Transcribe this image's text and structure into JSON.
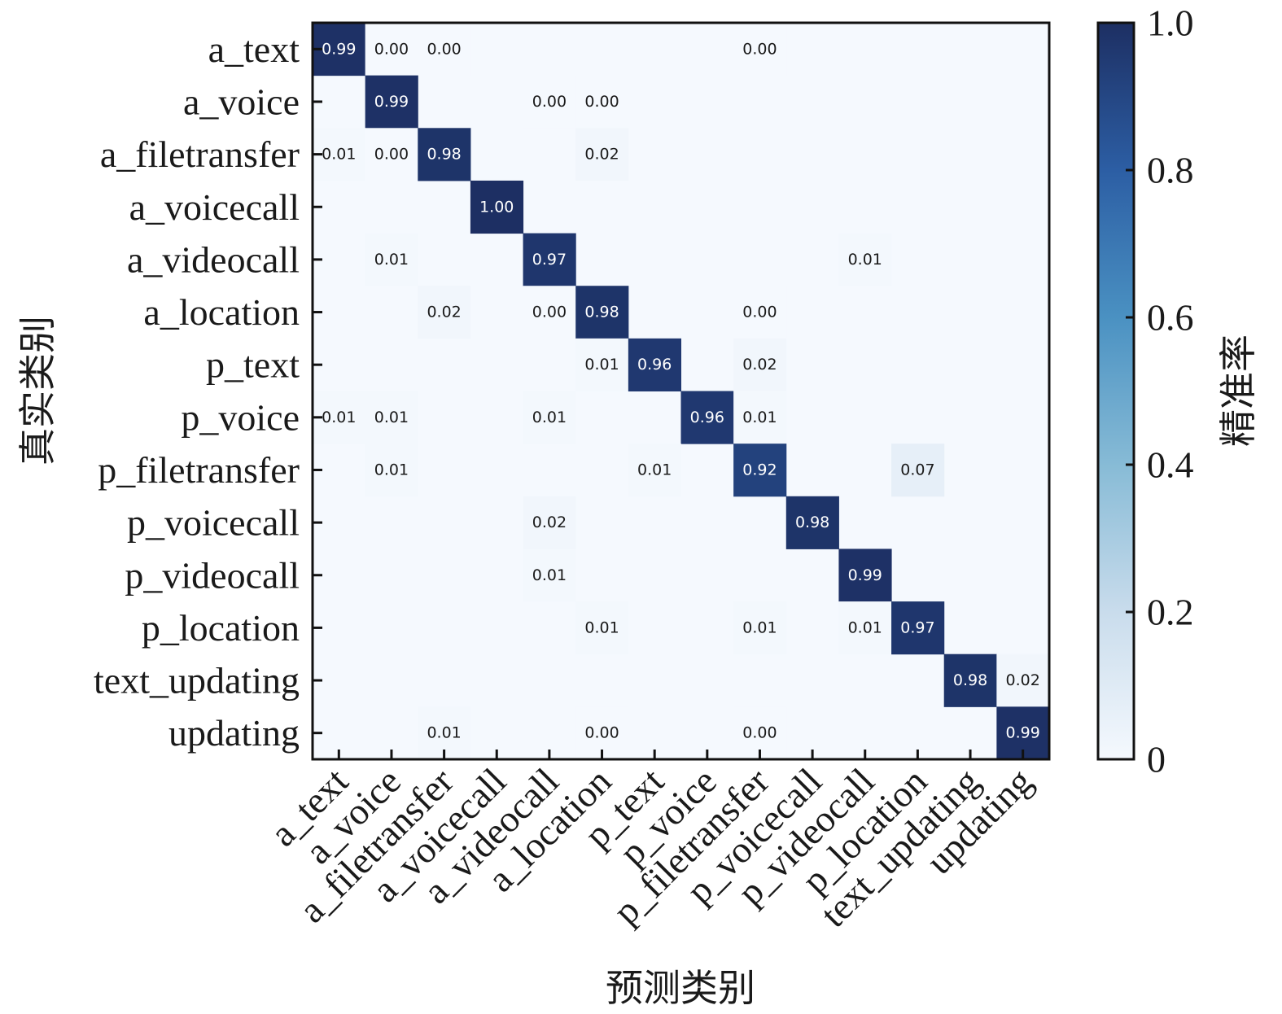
{
  "chart_data": {
    "type": "heatmap",
    "title": "",
    "xlabel": "预测类别",
    "ylabel": "真实类别",
    "colorbar_label": "精准率",
    "colorbar_ticks": [
      "0",
      "0.2",
      "0.4",
      "0.6",
      "0.8",
      "1.0"
    ],
    "colorbar_range": [
      0,
      1
    ],
    "colormap": [
      "#f5f9fe",
      "#c9dcec",
      "#87bbd6",
      "#4a91c2",
      "#2c5ea4",
      "#1d2f63"
    ],
    "categories": [
      "a_text",
      "a_voice",
      "a_filetransfer",
      "a_voicecall",
      "a_videocall",
      "a_location",
      "p_text",
      "p_voice",
      "p_filetransfer",
      "p_voicecall",
      "p_videocall",
      "p_location",
      "text_updating",
      "updating"
    ],
    "matrix": [
      [
        0.99,
        0.0,
        0.0,
        null,
        null,
        null,
        null,
        null,
        0.0,
        null,
        null,
        null,
        null,
        null
      ],
      [
        null,
        0.99,
        null,
        null,
        0.0,
        0.0,
        null,
        null,
        null,
        null,
        null,
        null,
        null,
        null
      ],
      [
        0.01,
        0.0,
        0.98,
        null,
        null,
        0.02,
        null,
        null,
        null,
        null,
        null,
        null,
        null,
        null
      ],
      [
        null,
        null,
        null,
        1.0,
        null,
        null,
        null,
        null,
        null,
        null,
        null,
        null,
        null,
        null
      ],
      [
        null,
        0.01,
        null,
        null,
        0.97,
        null,
        null,
        null,
        null,
        null,
        0.01,
        null,
        null,
        null
      ],
      [
        null,
        null,
        0.02,
        null,
        0.0,
        0.98,
        null,
        null,
        0.0,
        null,
        null,
        null,
        null,
        null
      ],
      [
        null,
        null,
        null,
        null,
        null,
        0.01,
        0.96,
        null,
        0.02,
        null,
        null,
        null,
        null,
        null
      ],
      [
        0.01,
        0.01,
        null,
        null,
        0.01,
        null,
        null,
        0.96,
        0.01,
        null,
        null,
        null,
        null,
        null
      ],
      [
        null,
        0.01,
        null,
        null,
        null,
        null,
        0.01,
        null,
        0.92,
        null,
        null,
        0.07,
        null,
        null
      ],
      [
        null,
        null,
        null,
        null,
        0.02,
        null,
        null,
        null,
        null,
        0.98,
        null,
        null,
        null,
        null
      ],
      [
        null,
        null,
        null,
        null,
        0.01,
        null,
        null,
        null,
        null,
        null,
        0.99,
        null,
        null,
        null
      ],
      [
        null,
        null,
        null,
        null,
        null,
        0.01,
        null,
        null,
        0.01,
        null,
        0.01,
        0.97,
        null,
        null
      ],
      [
        null,
        null,
        null,
        null,
        null,
        null,
        null,
        null,
        null,
        null,
        null,
        null,
        0.98,
        0.02
      ],
      [
        null,
        null,
        0.01,
        null,
        null,
        0.0,
        null,
        null,
        0.0,
        null,
        null,
        null,
        null,
        0.99
      ]
    ]
  }
}
